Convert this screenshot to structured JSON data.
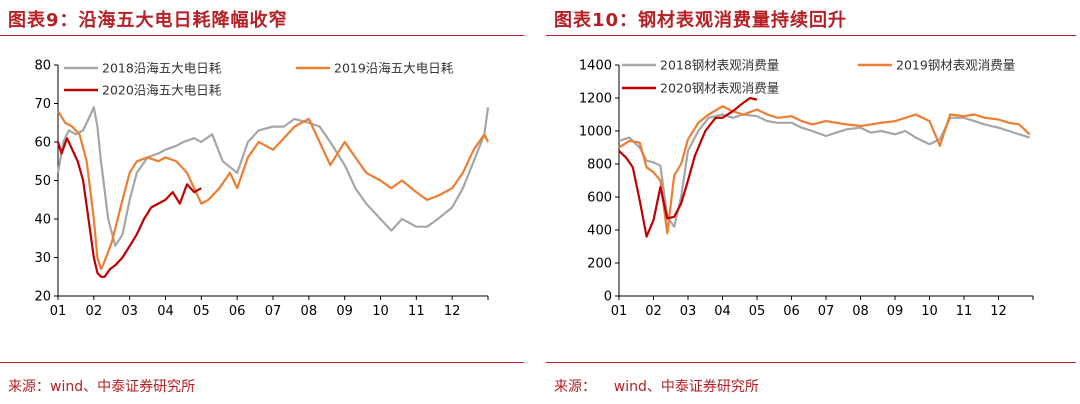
{
  "left": {
    "title": "图表9：沿海五大电日耗降幅收窄",
    "source": "来源：wind、中泰证券研究所",
    "chart_data": {
      "type": "line",
      "x_ticks": [
        "01",
        "02",
        "03",
        "04",
        "05",
        "06",
        "07",
        "08",
        "09",
        "10",
        "11",
        "12"
      ],
      "xlim": [
        1,
        13
      ],
      "ylim": [
        20,
        80
      ],
      "y_ticks": [
        "20",
        "30",
        "40",
        "50",
        "60",
        "70",
        "80"
      ],
      "grid": false,
      "legend_position": "top",
      "series": [
        {
          "name": "2018沿海五大电日耗",
          "color": "#a6a6a6",
          "x": [
            1.0,
            1.15,
            1.3,
            1.5,
            1.7,
            1.9,
            2.0,
            2.1,
            2.2,
            2.4,
            2.6,
            2.8,
            3.0,
            3.2,
            3.5,
            3.8,
            4.0,
            4.3,
            4.5,
            4.8,
            5.0,
            5.3,
            5.6,
            6.0,
            6.3,
            6.6,
            7.0,
            7.3,
            7.6,
            8.0,
            8.3,
            8.6,
            9.0,
            9.3,
            9.6,
            10.0,
            10.3,
            10.6,
            11.0,
            11.3,
            11.6,
            12.0,
            12.3,
            12.6,
            12.9,
            13.0
          ],
          "y": [
            52,
            60,
            63,
            62,
            63,
            67,
            69,
            64,
            55,
            40,
            33,
            36,
            45,
            52,
            56,
            57,
            58,
            59,
            60,
            61,
            60,
            62,
            55,
            52,
            60,
            63,
            64,
            64,
            66,
            65,
            64,
            60,
            54,
            48,
            44,
            40,
            37,
            40,
            38,
            38,
            40,
            43,
            48,
            55,
            62,
            69
          ]
        },
        {
          "name": "2019沿海五大电日耗",
          "color": "#ed7d31",
          "x": [
            1.0,
            1.2,
            1.4,
            1.6,
            1.8,
            2.0,
            2.1,
            2.2,
            2.3,
            2.5,
            2.8,
            3.0,
            3.2,
            3.5,
            3.8,
            4.0,
            4.3,
            4.6,
            4.8,
            5.0,
            5.2,
            5.5,
            5.8,
            6.0,
            6.3,
            6.6,
            7.0,
            7.3,
            7.6,
            8.0,
            8.3,
            8.6,
            9.0,
            9.3,
            9.6,
            10.0,
            10.3,
            10.6,
            11.0,
            11.3,
            11.6,
            12.0,
            12.3,
            12.6,
            12.9,
            13.0
          ],
          "y": [
            68,
            65,
            64,
            62,
            55,
            40,
            30,
            27,
            29,
            34,
            45,
            52,
            55,
            56,
            55,
            56,
            55,
            52,
            48,
            44,
            45,
            48,
            52,
            48,
            56,
            60,
            58,
            61,
            64,
            66,
            60,
            54,
            60,
            56,
            52,
            50,
            48,
            50,
            47,
            45,
            46,
            48,
            52,
            58,
            62,
            60
          ]
        },
        {
          "name": "2020沿海五大电日耗",
          "color": "#c00000",
          "x": [
            1.0,
            1.1,
            1.25,
            1.4,
            1.55,
            1.7,
            1.85,
            2.0,
            2.1,
            2.2,
            2.3,
            2.45,
            2.6,
            2.8,
            3.0,
            3.2,
            3.4,
            3.6,
            3.8,
            4.0,
            4.2,
            4.4,
            4.6,
            4.8,
            5.0
          ],
          "y": [
            60,
            57,
            61,
            58,
            55,
            50,
            40,
            30,
            26,
            25,
            25,
            27,
            28,
            30,
            33,
            36,
            40,
            43,
            44,
            45,
            47,
            44,
            49,
            47,
            48
          ]
        }
      ]
    }
  },
  "right": {
    "title": "图表10：钢材表观消费量持续回升",
    "source": "来源：    wind、中泰证券研究所",
    "chart_data": {
      "type": "line",
      "x_ticks": [
        "01",
        "02",
        "03",
        "04",
        "05",
        "06",
        "07",
        "08",
        "09",
        "10",
        "11",
        "12"
      ],
      "xlim": [
        1,
        13
      ],
      "ylim": [
        0,
        1400
      ],
      "y_ticks": [
        "0",
        "200",
        "400",
        "600",
        "800",
        "1000",
        "1200",
        "1400"
      ],
      "grid": false,
      "legend_position": "top",
      "series": [
        {
          "name": "2018钢材表观消费量",
          "color": "#a6a6a6",
          "x": [
            1.0,
            1.3,
            1.6,
            1.8,
            2.0,
            2.2,
            2.4,
            2.6,
            2.8,
            3.0,
            3.3,
            3.6,
            4.0,
            4.3,
            4.6,
            5.0,
            5.3,
            5.6,
            6.0,
            6.3,
            6.6,
            7.0,
            7.3,
            7.6,
            8.0,
            8.3,
            8.6,
            9.0,
            9.3,
            9.6,
            10.0,
            10.3,
            10.6,
            11.0,
            11.3,
            11.6,
            12.0,
            12.3,
            12.6,
            12.9
          ],
          "y": [
            940,
            960,
            900,
            820,
            810,
            790,
            480,
            420,
            600,
            880,
            1000,
            1080,
            1100,
            1080,
            1100,
            1090,
            1060,
            1050,
            1050,
            1020,
            1000,
            970,
            990,
            1010,
            1020,
            990,
            1000,
            980,
            1000,
            960,
            920,
            950,
            1080,
            1080,
            1060,
            1040,
            1020,
            1000,
            980,
            960
          ]
        },
        {
          "name": "2019钢材表观消费量",
          "color": "#ed7d31",
          "x": [
            1.0,
            1.3,
            1.6,
            1.8,
            2.0,
            2.2,
            2.4,
            2.6,
            2.8,
            3.0,
            3.3,
            3.6,
            4.0,
            4.3,
            4.6,
            5.0,
            5.3,
            5.6,
            6.0,
            6.3,
            6.6,
            7.0,
            7.3,
            7.6,
            8.0,
            8.3,
            8.6,
            9.0,
            9.3,
            9.6,
            10.0,
            10.3,
            10.6,
            11.0,
            11.3,
            11.6,
            12.0,
            12.3,
            12.6,
            12.9
          ],
          "y": [
            900,
            940,
            930,
            780,
            750,
            700,
            380,
            730,
            800,
            950,
            1050,
            1100,
            1150,
            1120,
            1100,
            1130,
            1100,
            1080,
            1090,
            1060,
            1040,
            1060,
            1050,
            1040,
            1030,
            1040,
            1050,
            1060,
            1080,
            1100,
            1060,
            910,
            1100,
            1090,
            1100,
            1080,
            1070,
            1050,
            1040,
            980
          ]
        },
        {
          "name": "2020钢材表观消费量",
          "color": "#c00000",
          "x": [
            1.0,
            1.2,
            1.4,
            1.6,
            1.8,
            2.0,
            2.2,
            2.4,
            2.6,
            2.8,
            3.0,
            3.2,
            3.5,
            3.8,
            4.0,
            4.3,
            4.6,
            4.8,
            5.0
          ],
          "y": [
            880,
            840,
            780,
            580,
            360,
            460,
            660,
            470,
            480,
            560,
            700,
            850,
            1000,
            1080,
            1080,
            1120,
            1170,
            1200,
            1190
          ]
        }
      ]
    }
  }
}
